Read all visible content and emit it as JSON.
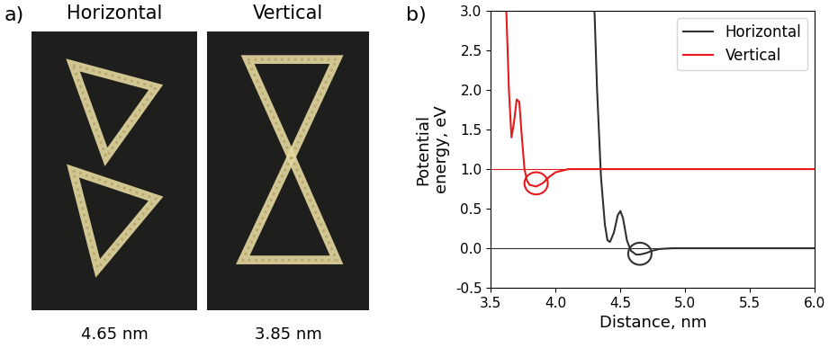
{
  "panel_a": {
    "label": "a)",
    "images": [
      {
        "title": "Horizontal",
        "caption": "4.65 nm",
        "arrangement": "horizontal"
      },
      {
        "title": "Vertical",
        "caption": "3.85 nm",
        "arrangement": "vertical"
      }
    ]
  },
  "chart_data": {
    "type": "line",
    "label": "b)",
    "x_label": "Distance, nm",
    "y_label": "Potential\nenergy, eV",
    "xlim": [
      3.5,
      6.0
    ],
    "ylim": [
      -0.5,
      3.0
    ],
    "xticks": [
      3.5,
      4.0,
      4.5,
      5.0,
      5.5,
      6.0
    ],
    "yticks": [
      -0.5,
      0.0,
      0.5,
      1.0,
      1.5,
      2.0,
      2.5,
      3.0
    ],
    "legend": "upper right",
    "series": [
      {
        "name": "Horizontal",
        "color": "#303030",
        "x": [
          4.3,
          4.32,
          4.35,
          4.38,
          4.4,
          4.42,
          4.45,
          4.48,
          4.5,
          4.52,
          4.55,
          4.58,
          4.62,
          4.65,
          4.7,
          4.75,
          4.8,
          4.9,
          5.0,
          5.5,
          6.0
        ],
        "values": [
          3.0,
          2.0,
          0.9,
          0.3,
          0.1,
          0.08,
          0.2,
          0.42,
          0.47,
          0.38,
          0.1,
          -0.03,
          -0.08,
          -0.08,
          -0.06,
          -0.03,
          -0.01,
          0.0,
          0.0,
          0.0,
          0.0
        ]
      },
      {
        "name": "Vertical",
        "color": "#e41a1c",
        "x": [
          3.62,
          3.64,
          3.66,
          3.68,
          3.7,
          3.72,
          3.74,
          3.76,
          3.78,
          3.8,
          3.85,
          3.9,
          3.95,
          4.0,
          4.1,
          4.2,
          4.5,
          5.0,
          5.5,
          6.0
        ],
        "values": [
          3.0,
          2.0,
          1.4,
          1.6,
          1.88,
          1.85,
          1.4,
          1.0,
          0.85,
          0.8,
          0.78,
          0.82,
          0.9,
          0.96,
          1.0,
          1.0,
          1.0,
          1.0,
          1.0,
          1.0
        ]
      }
    ],
    "reference_lines": [
      {
        "y": 0.0,
        "color": "#303030"
      },
      {
        "y": 1.0,
        "color": "#e41a1c"
      }
    ],
    "highlights": [
      {
        "x": 4.65,
        "y": -0.07,
        "color": "#303030"
      },
      {
        "x": 3.85,
        "y": 0.82,
        "color": "#e41a1c"
      }
    ]
  }
}
